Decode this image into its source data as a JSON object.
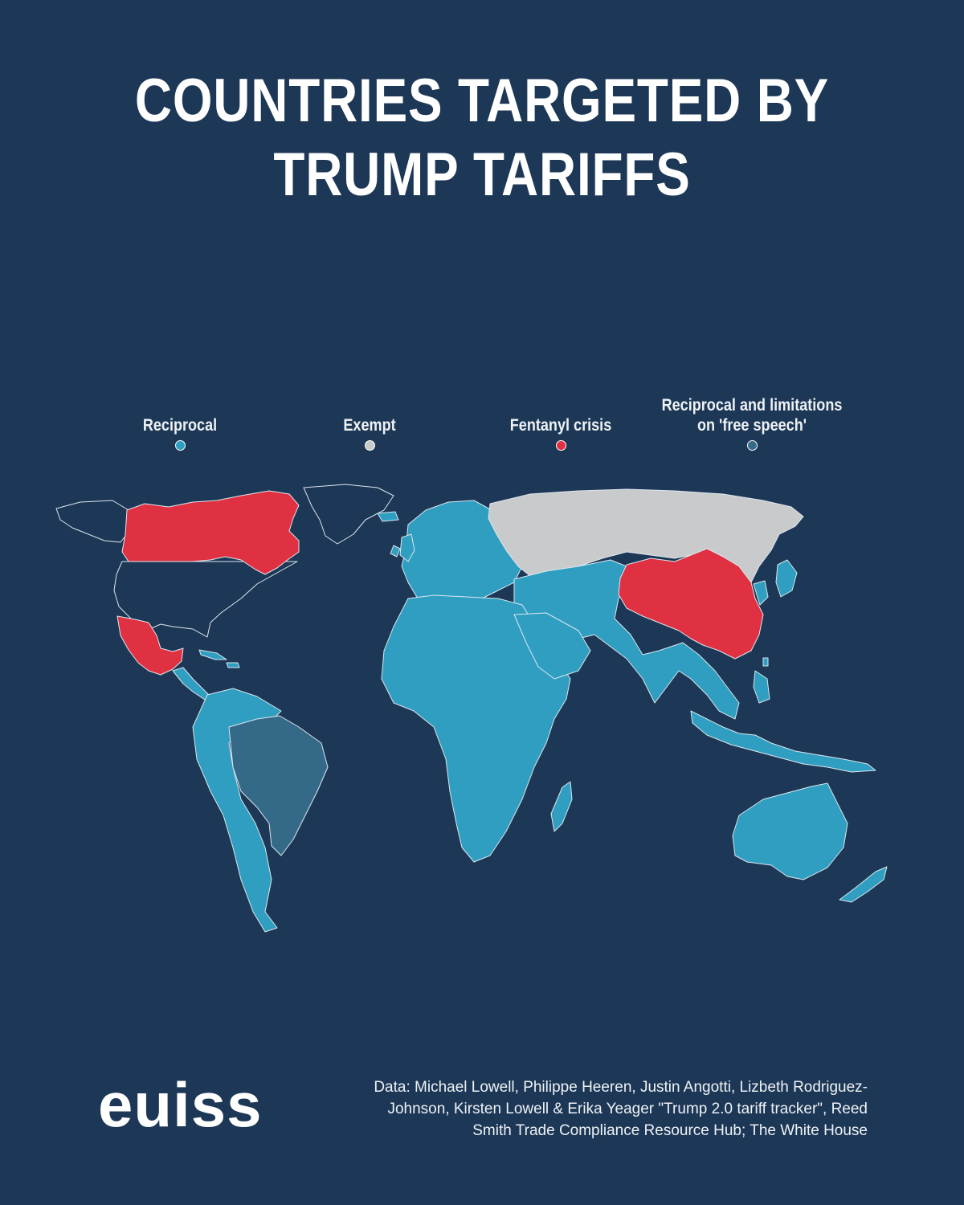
{
  "title": {
    "line1": "COUNTRIES TARGETED BY",
    "line2": "TRUMP TARIFFS"
  },
  "legend": [
    {
      "label": "Reciprocal",
      "color": "#2f9ec1"
    },
    {
      "label": "Exempt",
      "color": "#c9cacc"
    },
    {
      "label": "Fentanyl crisis",
      "color": "#e03142"
    },
    {
      "label": "Reciprocal and limitations on 'free speech'",
      "color": "#346a88"
    }
  ],
  "map_data": {
    "colors": {
      "reciprocal": "#2f9ec1",
      "exempt": "#c9cacc",
      "fentanyl": "#e03142",
      "reciprocal_free_speech": "#346a88",
      "untargeted": "#1d3756",
      "border": "#dce7ee"
    },
    "categories": {
      "fentanyl": [
        "Canada",
        "Mexico",
        "China"
      ],
      "exempt": [
        "Russia"
      ],
      "reciprocal_free_speech": [
        "Brazil"
      ],
      "untargeted": [
        "United States",
        "Greenland"
      ],
      "reciprocal": [
        "Europe",
        "Africa",
        "Middle East",
        "South Asia",
        "Southeast Asia",
        "Japan",
        "Korea",
        "Australia",
        "New Zealand",
        "Central America",
        "South America"
      ]
    }
  },
  "logo": "euiss",
  "source": {
    "line1": "Data: Michael Lowell, Philippe Heeren, Justin Angotti, Lizbeth Rodriguez-",
    "line2": "Johnson, Kirsten Lowell & Erika Yeager \"Trump 2.0 tariff tracker\", Reed",
    "line3": "Smith Trade Compliance Resource Hub; The White House"
  }
}
